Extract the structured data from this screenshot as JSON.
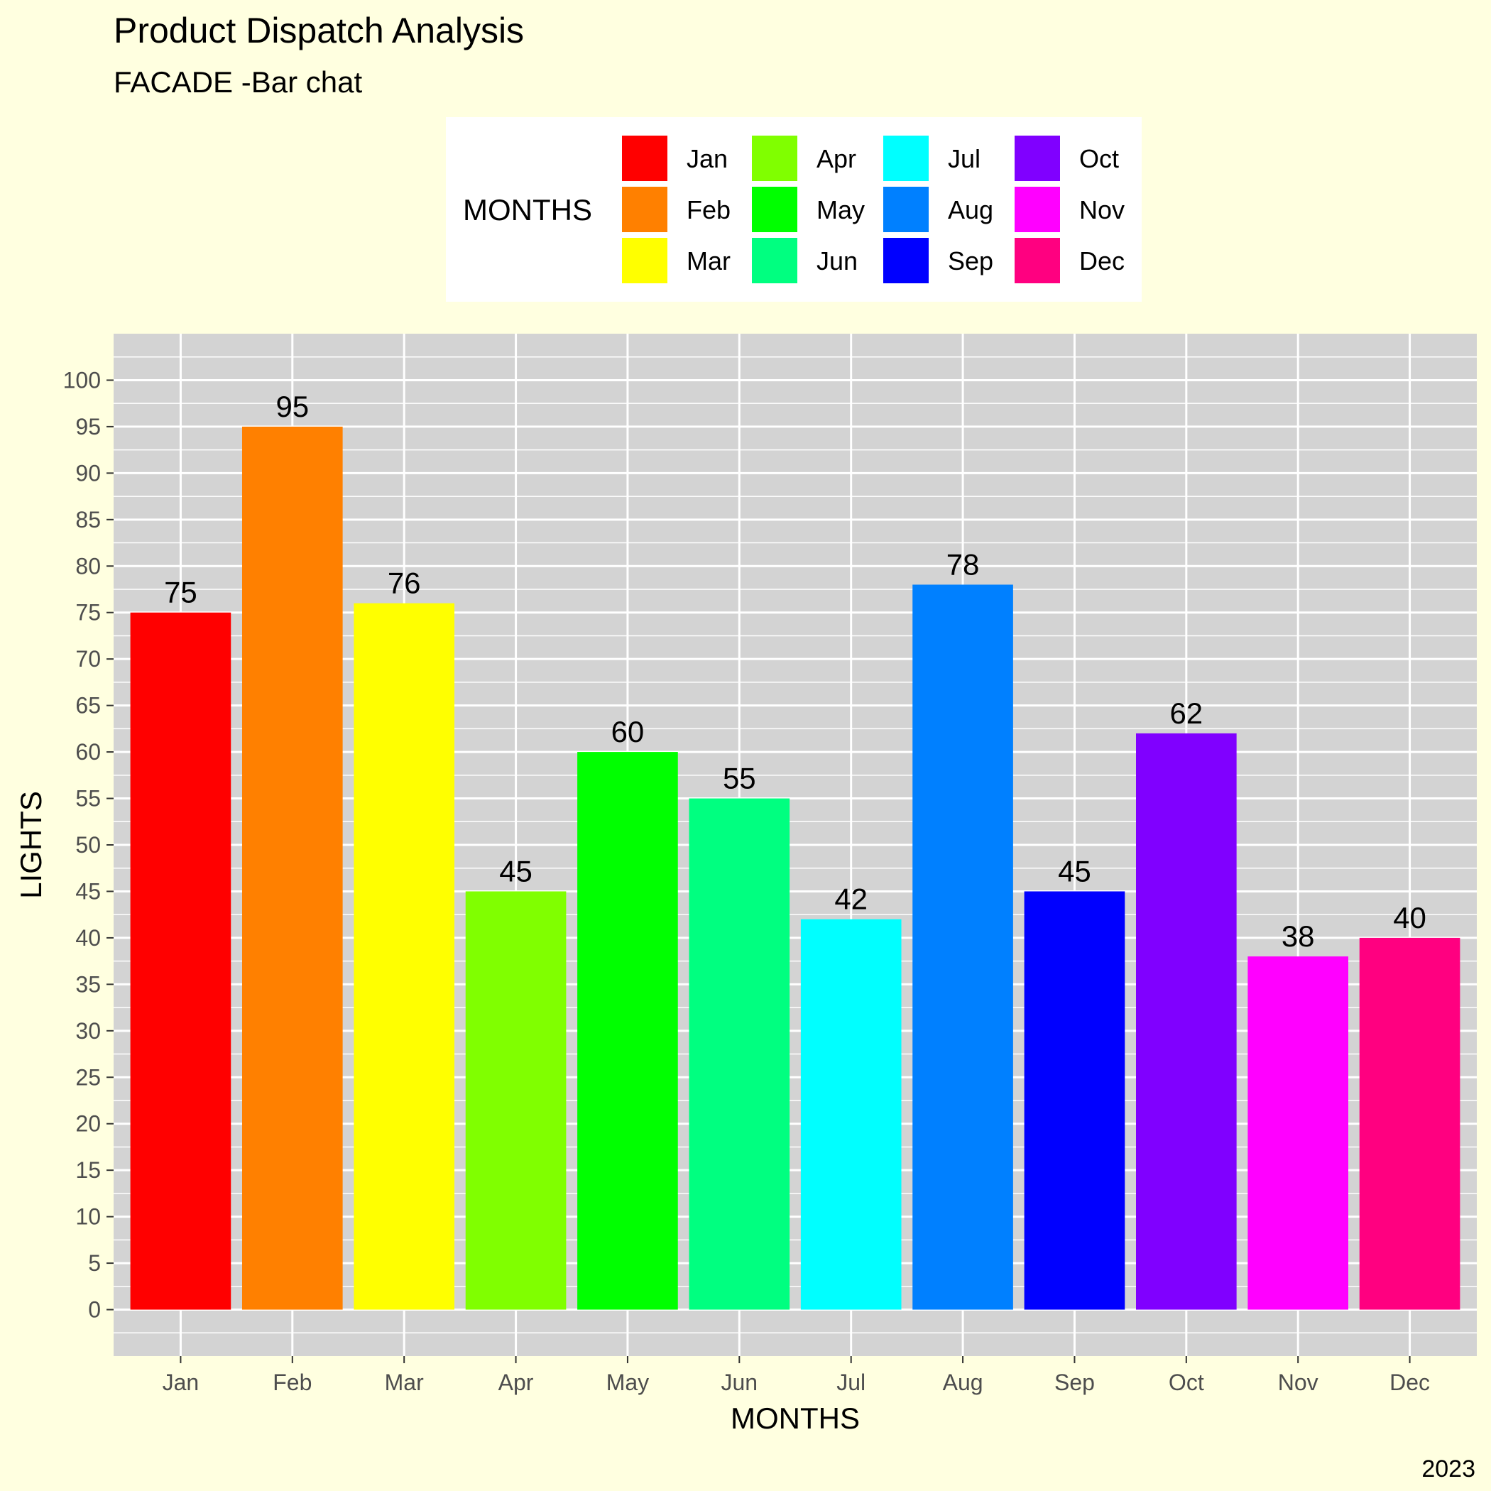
{
  "chart_data": {
    "type": "bar",
    "title": "Product Dispatch Analysis",
    "subtitle": "FACADE -Bar chat",
    "xlabel": "MONTHS",
    "ylabel": "LIGHTS",
    "caption": "2023",
    "categories": [
      "Jan",
      "Feb",
      "Mar",
      "Apr",
      "May",
      "Jun",
      "Jul",
      "Aug",
      "Sep",
      "Oct",
      "Nov",
      "Dec"
    ],
    "values": [
      75,
      95,
      76,
      45,
      60,
      55,
      42,
      78,
      45,
      62,
      38,
      40
    ],
    "colors": [
      "#FF0000",
      "#FF8000",
      "#FFFF00",
      "#80FF00",
      "#00FF00",
      "#00FF80",
      "#00FFFF",
      "#0080FF",
      "#0000FF",
      "#8000FF",
      "#FF00FF",
      "#FF0080"
    ],
    "ylim": [
      -5,
      105
    ],
    "yticks": [
      0,
      5,
      10,
      15,
      20,
      25,
      30,
      35,
      40,
      45,
      50,
      55,
      60,
      65,
      70,
      75,
      80,
      85,
      90,
      95,
      100
    ],
    "grid": true,
    "legend": {
      "title": "MONTHS",
      "position": "top",
      "entries": [
        "Jan",
        "Feb",
        "Mar",
        "Apr",
        "May",
        "Jun",
        "Jul",
        "Aug",
        "Sep",
        "Oct",
        "Nov",
        "Dec"
      ]
    },
    "panel_color": "#D3D3D3",
    "background_color": "#FFFFE0"
  }
}
